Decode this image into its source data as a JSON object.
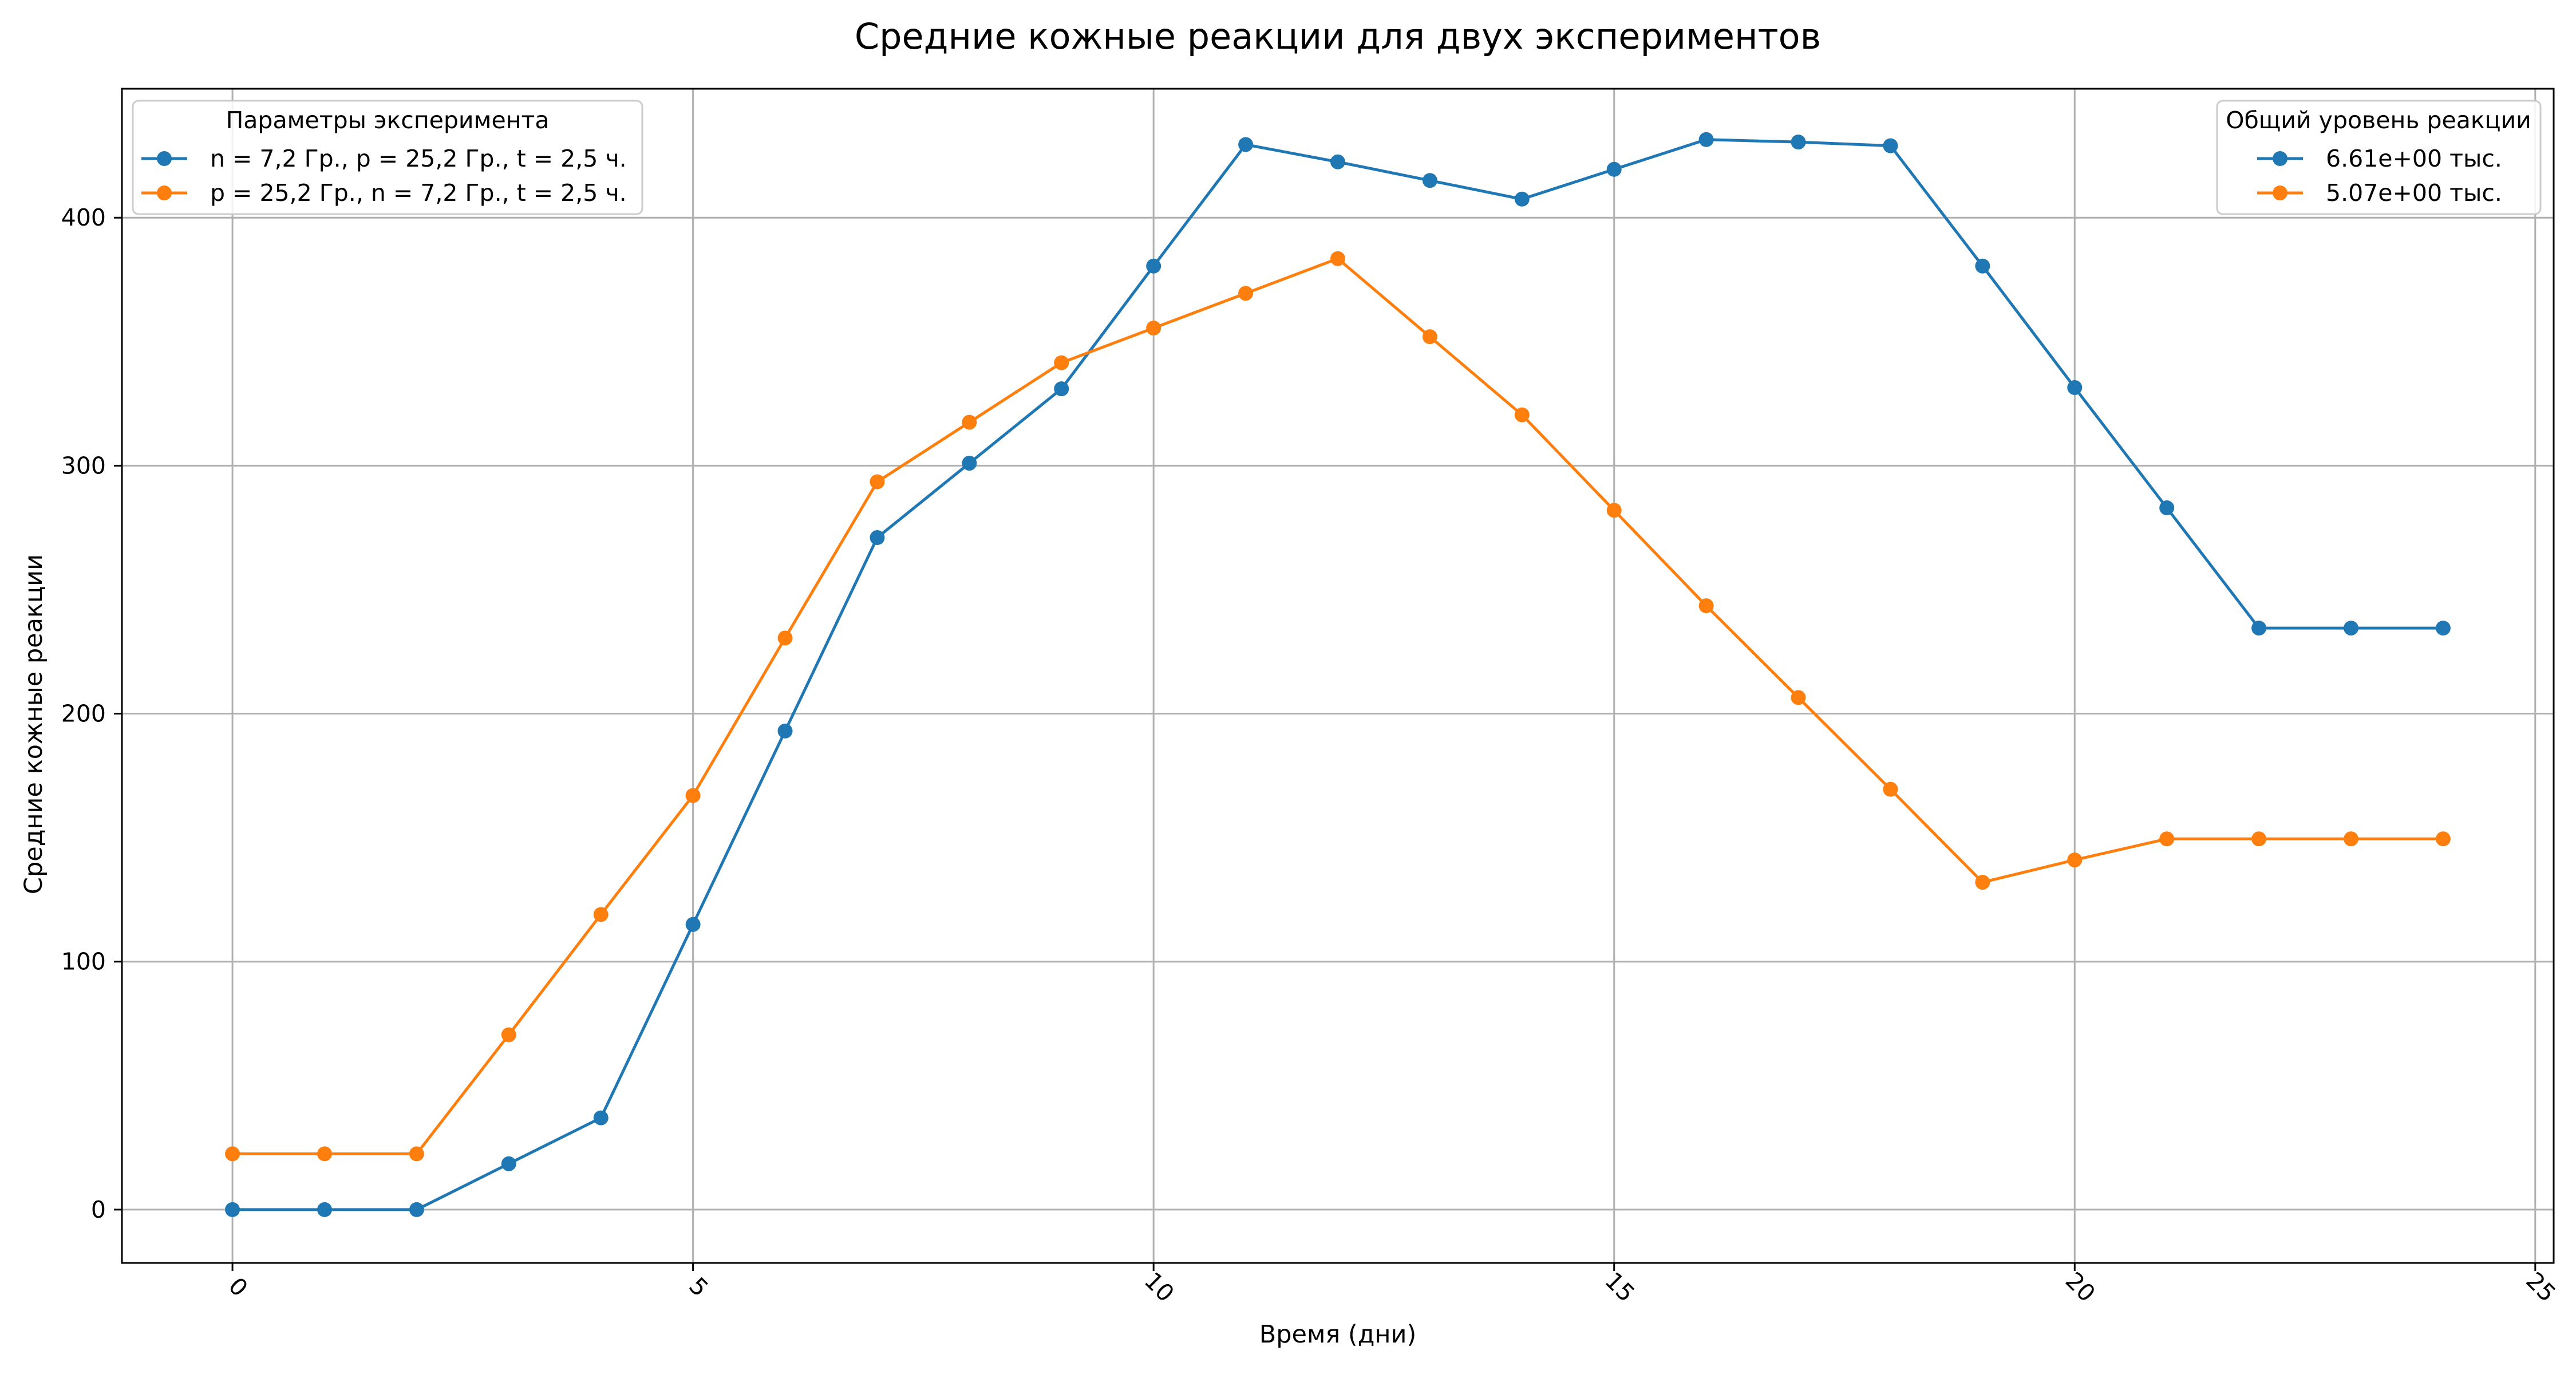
{
  "chart_data": {
    "type": "line",
    "title": "Средние кожные реакции для двух экспериментов",
    "xlabel": "Время (дни)",
    "ylabel": "Средние кожные реакции",
    "xlim": [
      -1.2,
      25.2
    ],
    "ylim": [
      -21.5,
      452
    ],
    "xticks": [
      0,
      5,
      10,
      15,
      20,
      25
    ],
    "yticks": [
      0,
      100,
      200,
      300,
      400
    ],
    "xtick_rotation": 45,
    "grid": true,
    "x": [
      0,
      1,
      2,
      3,
      4,
      5,
      6,
      7,
      8,
      9,
      10,
      11,
      12,
      13,
      14,
      15,
      16,
      17,
      18,
      19,
      20,
      21,
      22,
      23,
      24
    ],
    "series": [
      {
        "name": "n = 7,2 Гр., p = 25,2 Гр., t = 2,5 ч.",
        "color": "#1f77b4",
        "marker": "circle",
        "values": [
          0,
          0,
          0,
          18.5,
          37,
          115,
          193,
          271,
          301,
          331,
          380.5,
          429.5,
          422.5,
          415,
          407.5,
          419.5,
          431.5,
          430.5,
          429,
          380.5,
          331.5,
          283,
          234.5,
          234.5,
          234.5
        ]
      },
      {
        "name": "p = 25,2 Гр., n = 7,2 Гр., t = 2,5 ч.",
        "color": "#ff7f0e",
        "marker": "circle",
        "values": [
          22.5,
          22.5,
          22.5,
          70.5,
          119,
          167,
          230.5,
          293.5,
          317.5,
          341.5,
          355.5,
          369.5,
          383.5,
          352,
          320.5,
          282,
          243.5,
          206.5,
          169.5,
          132,
          141,
          149.5,
          149.5,
          149.5,
          149.5
        ]
      }
    ],
    "legends": [
      {
        "title": "Параметры эксперимента",
        "position": "upper-left",
        "entries": [
          "n = 7,2 Гр., p = 25,2 Гр., t = 2,5 ч.",
          "p = 25,2 Гр., n = 7,2 Гр., t = 2,5 ч."
        ],
        "colors": [
          "#1f77b4",
          "#ff7f0e"
        ]
      },
      {
        "title": "Общий уровень реакции",
        "position": "upper-right",
        "entries": [
          "6.61e+00 тыс.",
          "5.07e+00 тыс."
        ],
        "colors": [
          "#1f77b4",
          "#ff7f0e"
        ]
      }
    ]
  }
}
